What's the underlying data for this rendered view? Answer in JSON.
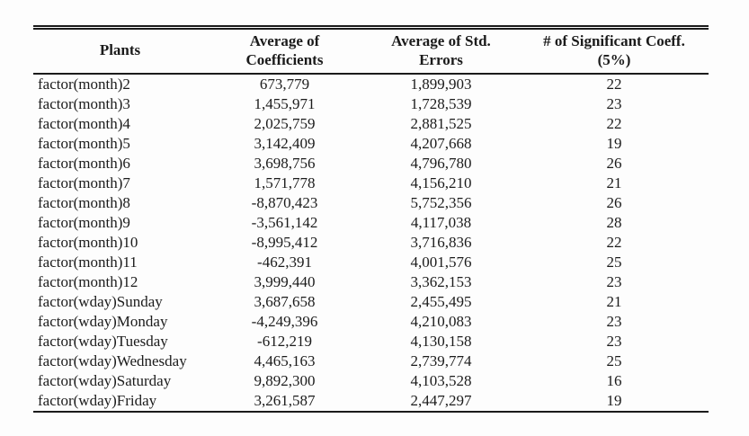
{
  "colors": {
    "background": "#fdfdfd",
    "text": "#1b1b1b",
    "rule": "#1b1b1b"
  },
  "table": {
    "columns": [
      {
        "label": "Plants"
      },
      {
        "label": "Average of\nCoefficients"
      },
      {
        "label": "Average of Std.\nErrors"
      },
      {
        "label": "# of Significant Coeff.\n(5%)"
      }
    ],
    "rows": [
      [
        "factor(month)2",
        "673,779",
        "1,899,903",
        "22"
      ],
      [
        "factor(month)3",
        "1,455,971",
        "1,728,539",
        "23"
      ],
      [
        "factor(month)4",
        "2,025,759",
        "2,881,525",
        "22"
      ],
      [
        "factor(month)5",
        "3,142,409",
        "4,207,668",
        "19"
      ],
      [
        "factor(month)6",
        "3,698,756",
        "4,796,780",
        "26"
      ],
      [
        "factor(month)7",
        "1,571,778",
        "4,156,210",
        "21"
      ],
      [
        "factor(month)8",
        "-8,870,423",
        "5,752,356",
        "26"
      ],
      [
        "factor(month)9",
        "-3,561,142",
        "4,117,038",
        "28"
      ],
      [
        "factor(month)10",
        "-8,995,412",
        "3,716,836",
        "22"
      ],
      [
        "factor(month)11",
        "-462,391",
        "4,001,576",
        "25"
      ],
      [
        "factor(month)12",
        "3,999,440",
        "3,362,153",
        "23"
      ],
      [
        "factor(wday)Sunday",
        "3,687,658",
        "2,455,495",
        "21"
      ],
      [
        "factor(wday)Monday",
        "-4,249,396",
        "4,210,083",
        "23"
      ],
      [
        "factor(wday)Tuesday",
        "-612,219",
        "4,130,158",
        "23"
      ],
      [
        "factor(wday)Wednesday",
        "4,465,163",
        "2,739,774",
        "25"
      ],
      [
        "factor(wday)Saturday",
        "9,892,300",
        "4,103,528",
        "16"
      ],
      [
        "factor(wday)Friday",
        "3,261,587",
        "2,447,297",
        "19"
      ]
    ]
  }
}
